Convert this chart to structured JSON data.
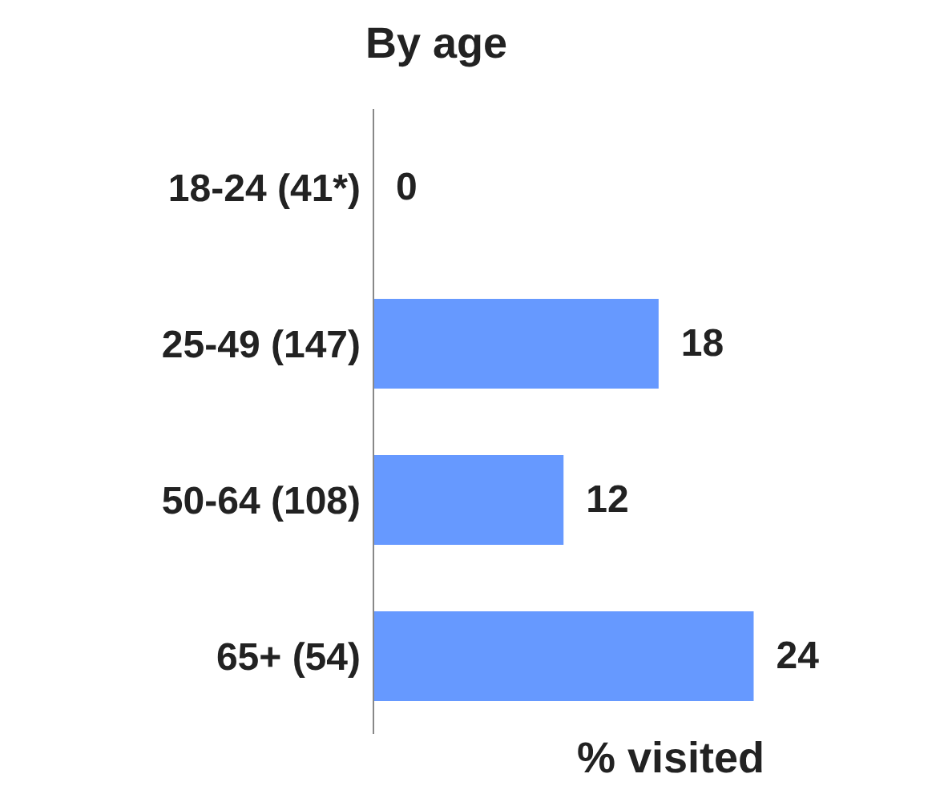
{
  "chart_data": {
    "type": "bar",
    "orientation": "horizontal",
    "title": "By age",
    "xlabel": "% visited",
    "categories": [
      "18-24 (41*)",
      "25-49 (147)",
      "50-64 (108)",
      "65+ (54)"
    ],
    "values": [
      0,
      18,
      12,
      24
    ],
    "color": "#6699ff",
    "data_labels": true,
    "tick_labels": "y"
  }
}
